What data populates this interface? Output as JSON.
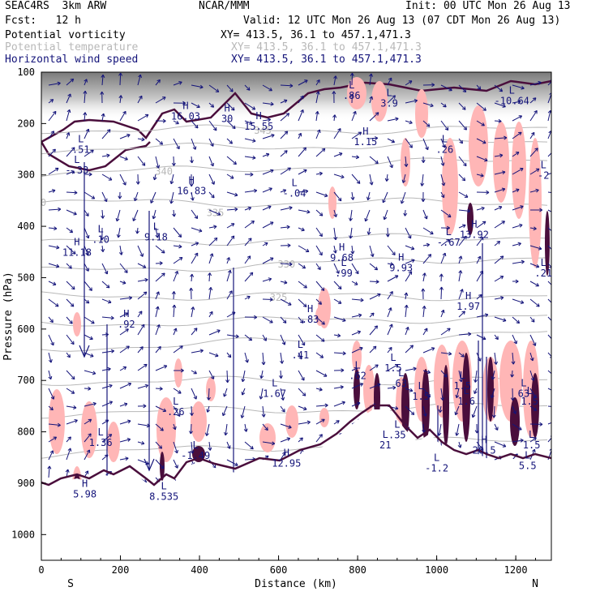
{
  "header": {
    "model": "SEAC4RS  3km ARW",
    "center": "NCAR/MMM",
    "init": "Init: 00 UTC Mon 26 Aug 13",
    "forecast": "Fcst:   12 h",
    "valid": "Valid: 12 UTC Mon 26 Aug 13 (07 CDT Mon 26 Aug 13)",
    "fields": [
      {
        "name": "Potential vorticity",
        "xy": "XY= 413.5, 36.1 to 457.1,471.3",
        "color": "#000000"
      },
      {
        "name": "Potential temperature",
        "xy": "XY= 413.5, 36.1 to 457.1,471.3",
        "color": "#b8b8b8"
      },
      {
        "name": "Horizontal wind speed",
        "xy": "XY= 413.5, 36.1 to 457.1,471.3",
        "color": "#14147a"
      }
    ]
  },
  "colors": {
    "pv_fill_light": "#ffb6b6",
    "pv_fill_dark": "#4a0e3c",
    "theta": "#b8b8b8",
    "wind": "#14147a",
    "label": "#14147a"
  },
  "chart_data": {
    "type": "cross-section",
    "xlabel": "Distance (km)",
    "ylabel": "Pressure (hPa)",
    "xlim": [
      0,
      1290
    ],
    "ylim": [
      1050,
      100
    ],
    "xticks": [
      0,
      200,
      400,
      600,
      800,
      1000,
      1200
    ],
    "yticks": [
      100,
      200,
      300,
      400,
      500,
      600,
      700,
      800,
      900,
      1000
    ],
    "left_end": "S",
    "right_end": "N",
    "theta_contours": [
      {
        "label": "340",
        "x": 310,
        "p": 300
      },
      {
        "label": "335",
        "x": 440,
        "p": 380
      },
      {
        "label": "330",
        "x": 620,
        "p": 480
      },
      {
        "label": "325",
        "x": 600,
        "p": 545
      },
      {
        "label": "345",
        "x": 560,
        "p": 220
      },
      {
        "label": "0",
        "x": 5,
        "p": 360
      }
    ],
    "extrema": [
      {
        "type": "H",
        "value": "16.03",
        "x": 365,
        "p": 175
      },
      {
        "type": "H",
        "value": "30",
        "x": 470,
        "p": 180
      },
      {
        "type": "H",
        "value": "15.55",
        "x": 550,
        "p": 195
      },
      {
        "type": "H",
        "value": "1.15",
        "x": 820,
        "p": 225
      },
      {
        "type": "L",
        "value": ".86",
        "x": 785,
        "p": 135
      },
      {
        "type": "L",
        "value": ".26",
        "x": 1020,
        "p": 240
      },
      {
        "type": "L",
        "value": "-10.64",
        "x": 1190,
        "p": 145
      },
      {
        "type": "L",
        "value": "3.9",
        "x": 880,
        "p": 150
      },
      {
        "type": "L",
        "value": ".51",
        "x": 100,
        "p": 240
      },
      {
        "type": "L",
        "value": "-.33",
        "x": 90,
        "p": 280
      },
      {
        "type": "L",
        "value": "-2",
        "x": 1270,
        "p": 290
      },
      {
        "type": "H",
        "value": "16.83",
        "x": 380,
        "p": 320
      },
      {
        "type": "L",
        "value": "-.04",
        "x": 640,
        "p": 325
      },
      {
        "type": "L",
        "value": ".10",
        "x": 150,
        "p": 415
      },
      {
        "type": "L",
        "value": "9.18",
        "x": 290,
        "p": 410
      },
      {
        "type": "H",
        "value": "11.18",
        "x": 90,
        "p": 440
      },
      {
        "type": "H",
        "value": "13.92",
        "x": 1095,
        "p": 405
      },
      {
        "type": "L",
        "value": "-.67",
        "x": 1030,
        "p": 420
      },
      {
        "type": "H",
        "value": "9.68",
        "x": 760,
        "p": 450
      },
      {
        "type": "H",
        "value": "9.93",
        "x": 910,
        "p": 470
      },
      {
        "type": "L",
        "value": ".99",
        "x": 765,
        "p": 480
      },
      {
        "type": "L",
        "value": ".21",
        "x": 1270,
        "p": 480
      },
      {
        "type": "H",
        "value": "1.97",
        "x": 1080,
        "p": 545
      },
      {
        "type": "H",
        "value": ".92",
        "x": 215,
        "p": 580
      },
      {
        "type": "H",
        "value": ".83",
        "x": 680,
        "p": 570
      },
      {
        "type": "L",
        "value": ".41",
        "x": 655,
        "p": 640
      },
      {
        "type": "L",
        "value": ".62",
        "x": 800,
        "p": 680
      },
      {
        "type": "L",
        "value": "1.5",
        "x": 890,
        "p": 665
      },
      {
        "type": "L",
        "value": "1.67",
        "x": 590,
        "p": 715
      },
      {
        "type": "L",
        "value": "1.5",
        "x": 1065,
        "p": 700
      },
      {
        "type": "L",
        "value": "63",
        "x": 910,
        "p": 695
      },
      {
        "type": "L",
        "value": "1.5",
        "x": 960,
        "p": 720
      },
      {
        "type": "L",
        "value": "1.6",
        "x": 1075,
        "p": 730
      },
      {
        "type": "L",
        "value": "63",
        "x": 1220,
        "p": 715
      },
      {
        "type": "L",
        "value": "1.5",
        "x": 1235,
        "p": 730
      },
      {
        "type": "L",
        "value": ".26",
        "x": 340,
        "p": 750
      },
      {
        "type": "L",
        "value": "1.36",
        "x": 150,
        "p": 810
      },
      {
        "type": "L",
        "value": "-1.49",
        "x": 390,
        "p": 835
      },
      {
        "type": "H",
        "value": "12.95",
        "x": 620,
        "p": 850
      },
      {
        "type": "H",
        "value": "20.5",
        "x": 1120,
        "p": 825
      },
      {
        "type": "L",
        "value": "-1.2",
        "x": 1000,
        "p": 860
      },
      {
        "type": "L",
        "value": "1.5",
        "x": 1240,
        "p": 815
      },
      {
        "type": "L",
        "value": "5.5",
        "x": 1230,
        "p": 855
      },
      {
        "type": "H",
        "value": "5.98",
        "x": 110,
        "p": 910
      },
      {
        "type": "L",
        "value": "8.535",
        "x": 310,
        "p": 915
      },
      {
        "type": "L",
        "value": "21",
        "x": 870,
        "p": 815
      },
      {
        "type": "L",
        "value": ".35",
        "x": 900,
        "p": 795
      }
    ]
  }
}
